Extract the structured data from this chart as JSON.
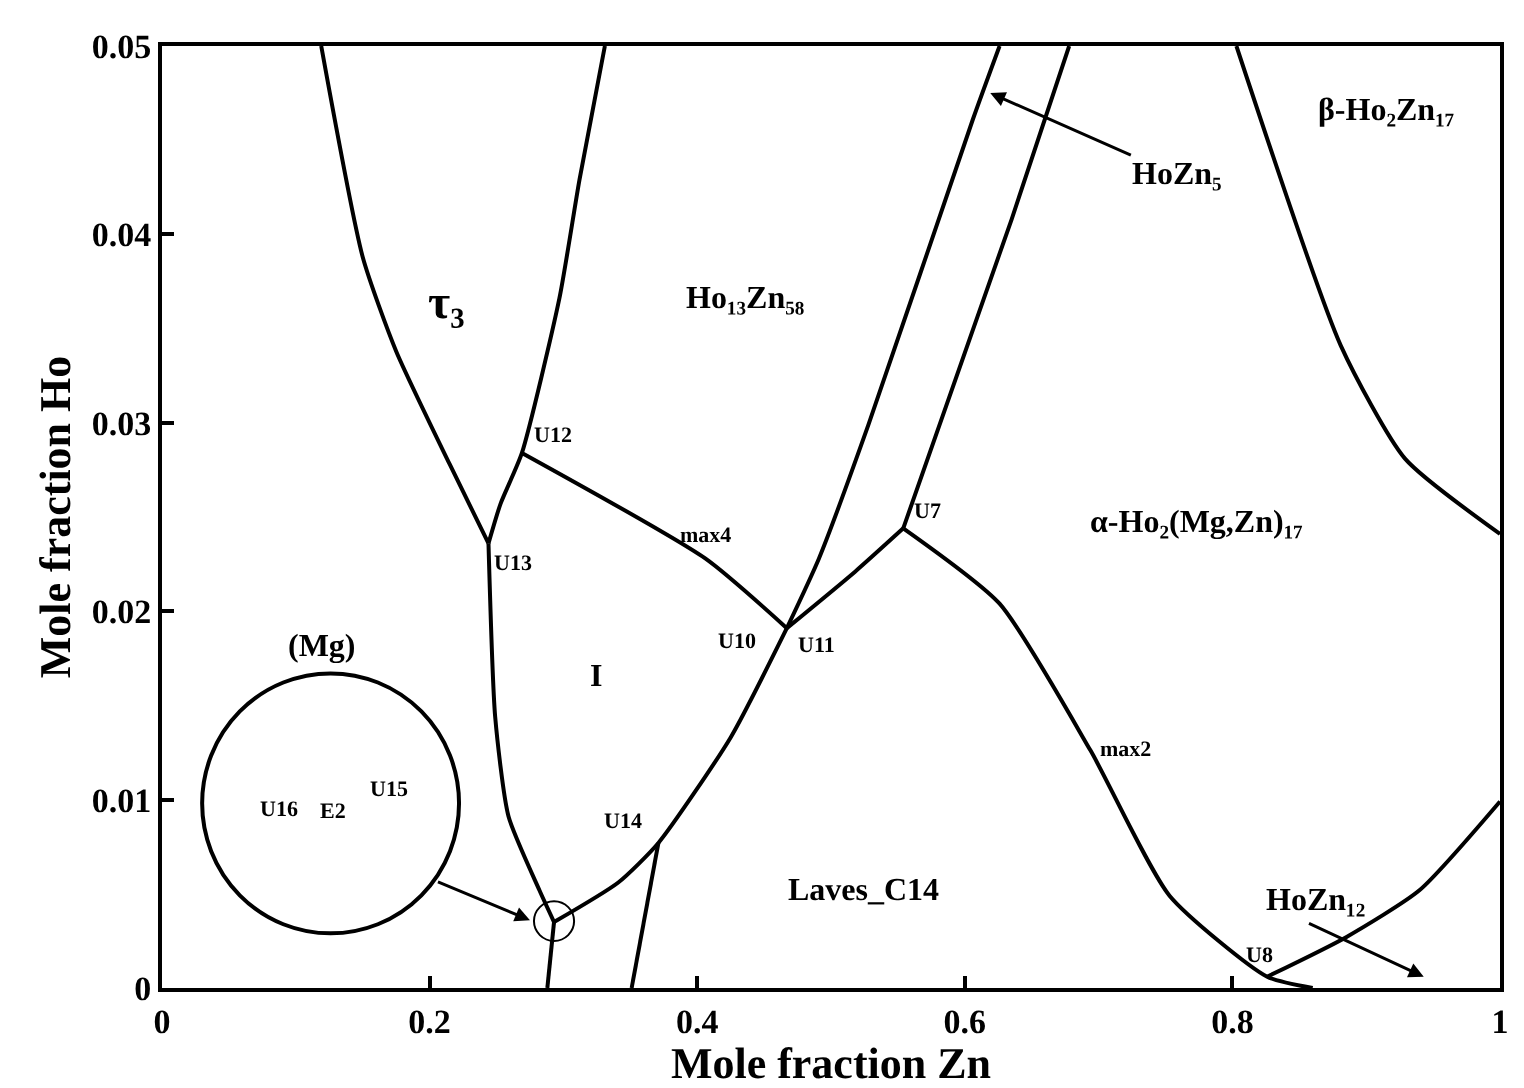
{
  "chart_data": {
    "type": "line",
    "xlabel": "Mole fraction Zn",
    "ylabel": "Mole fraction Ho",
    "xlim": [
      0,
      1
    ],
    "ylim": [
      0,
      0.05
    ],
    "xticks": [
      0,
      0.2,
      0.4,
      0.6,
      0.8,
      1
    ],
    "yticks": [
      0,
      0.01,
      0.02,
      0.03,
      0.04,
      0.05
    ],
    "marker": "none",
    "line_style": "solid",
    "series": [
      {
        "color": "#000000",
        "x": [
          0.119,
          0.15,
          0.175,
          0.215,
          0.244
        ],
        "values": [
          0.05,
          0.0388,
          0.0338,
          0.0278,
          0.0236
        ]
      },
      {
        "color": "#000000",
        "x": [
          0.331,
          0.312,
          0.297,
          0.269,
          0.253,
          0.244
        ],
        "values": [
          0.05,
          0.0429,
          0.0366,
          0.0284,
          0.0257,
          0.0236
        ]
      },
      {
        "color": "#000000",
        "x": [
          0.269,
          0.406,
          0.467
        ],
        "values": [
          0.0284,
          0.0228,
          0.0191
        ]
      },
      {
        "color": "#000000",
        "x": [
          0.244,
          0.249,
          0.259,
          0.282,
          0.293
        ],
        "values": [
          0.0236,
          0.0144,
          0.0091,
          0.0052,
          0.0035
        ]
      },
      {
        "color": "#000000",
        "x": [
          0.467,
          0.425,
          0.371,
          0.341,
          0.293
        ],
        "values": [
          0.0191,
          0.0133,
          0.0077,
          0.0056,
          0.0035
        ]
      },
      {
        "color": "#000000",
        "x": [
          0.371,
          0.351
        ],
        "values": [
          0.0077,
          0
        ]
      },
      {
        "color": "#000000",
        "x": [
          0.293,
          0.288
        ],
        "values": [
          0.0035,
          0
        ]
      },
      {
        "color": "#000000",
        "x": [
          0.467,
          0.491,
          0.528,
          0.606,
          0.626
        ],
        "values": [
          0.0191,
          0.0228,
          0.0299,
          0.0461,
          0.05
        ]
      },
      {
        "color": "#000000",
        "x": [
          0.554,
          0.635,
          0.678
        ],
        "values": [
          0.0244,
          0.0408,
          0.05
        ]
      },
      {
        "color": "#000000",
        "x": [
          0.554,
          0.518,
          0.467
        ],
        "values": [
          0.0244,
          0.0221,
          0.0191
        ]
      },
      {
        "color": "#000000",
        "x": [
          0.554,
          0.626,
          0.694,
          0.753,
          0.826,
          0.86
        ],
        "values": [
          0.0244,
          0.0204,
          0.0126,
          0.0049,
          0.0006,
          0
        ]
      },
      {
        "color": "#000000",
        "x": [
          0.826,
          0.885,
          0.94,
          1.0
        ],
        "values": [
          0.0006,
          0.0027,
          0.0052,
          0.0099
        ]
      },
      {
        "color": "#000000",
        "x": [
          0.803,
          0.881,
          0.929,
          1.0
        ],
        "values": [
          0.05,
          0.0341,
          0.0281,
          0.0241
        ]
      }
    ],
    "annotations": [
      "τ₃",
      "Ho₁₃Zn₅₈",
      {
        "text": "HoZn₅",
        "x": 0.619,
        "y": 0.0475
      },
      "β-Ho₂Zn₁₇",
      "α-Ho₂(Mg,Zn)₁₇",
      "I",
      "(Mg)",
      "Laves_C14",
      "HoZn₁₂",
      {
        "text": "U12",
        "x": 0.269,
        "y": 0.0284
      },
      {
        "text": "U13",
        "x": 0.244,
        "y": 0.0236
      },
      {
        "text": "max4",
        "x": 0.406,
        "y": 0.0228
      },
      {
        "text": "U10",
        "x": 0.467,
        "y": 0.0191
      },
      {
        "text": "U11",
        "x": 0.467,
        "y": 0.0191
      },
      {
        "text": "U7",
        "x": 0.554,
        "y": 0.0244
      },
      {
        "text": "max2",
        "x": 0.694,
        "y": 0.0126
      },
      {
        "text": "U14",
        "x": 0.371,
        "y": 0.0077
      },
      {
        "text": "U8",
        "x": 0.826,
        "y": 0.0006
      },
      "U16",
      "E2",
      "U15"
    ]
  }
}
